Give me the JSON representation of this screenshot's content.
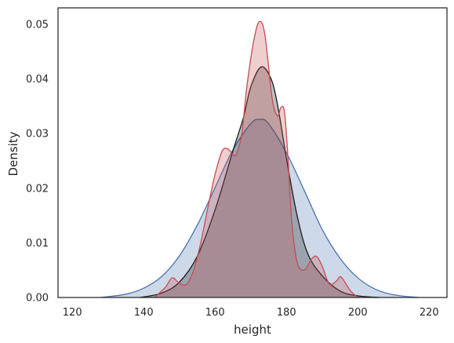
{
  "chart_data": {
    "type": "area",
    "title": "",
    "xlabel": "height",
    "ylabel": "Density",
    "xlim": [
      116,
      225
    ],
    "ylim": [
      0,
      0.053
    ],
    "xticks": [
      120,
      140,
      160,
      180,
      200,
      220
    ],
    "yticks": [
      0.0,
      0.01,
      0.02,
      0.03,
      0.04,
      0.05
    ],
    "ytick_labels": [
      "0.00",
      "0.01",
      "0.02",
      "0.03",
      "0.04",
      "0.05"
    ],
    "grid": false,
    "legend": "none",
    "series": [
      {
        "color": "#4c72b0",
        "fill_alpha": 0.28,
        "x": [
          128,
          135,
          140,
          145,
          150,
          155,
          160,
          165,
          170,
          172.5,
          175,
          180,
          185,
          190,
          195,
          200,
          205,
          210,
          217
        ],
        "y": [
          0.0,
          0.0006,
          0.0017,
          0.0038,
          0.0076,
          0.0132,
          0.0201,
          0.027,
          0.0318,
          0.0326,
          0.0318,
          0.0265,
          0.0196,
          0.0125,
          0.0072,
          0.0036,
          0.0015,
          0.0005,
          0.0
        ]
      },
      {
        "color": "#1a1a1a",
        "fill_alpha": 0.28,
        "x": [
          139,
          145,
          150,
          155,
          160,
          165,
          168,
          170,
          173,
          176,
          178,
          180,
          183,
          186,
          190,
          195,
          200,
          206
        ],
        "y": [
          0.0,
          0.0008,
          0.0028,
          0.0075,
          0.016,
          0.0268,
          0.033,
          0.0385,
          0.0422,
          0.0395,
          0.0335,
          0.0255,
          0.015,
          0.008,
          0.004,
          0.0012,
          0.0003,
          0.0
        ]
      },
      {
        "color": "#c44e52",
        "fill_alpha": 0.28,
        "x": [
          143,
          146,
          148,
          150,
          152,
          154,
          156,
          158,
          160,
          162,
          163.5,
          165,
          166,
          167.5,
          169,
          171,
          172.5,
          174,
          176,
          177.5,
          178.5,
          179.5,
          180.5,
          181.5,
          183,
          185,
          187,
          188.5,
          190,
          192,
          194,
          195,
          196,
          198,
          200
        ],
        "y": [
          0.0,
          0.0018,
          0.0036,
          0.0026,
          0.0024,
          0.005,
          0.01,
          0.0165,
          0.0225,
          0.0268,
          0.0272,
          0.0262,
          0.0262,
          0.03,
          0.039,
          0.0475,
          0.0505,
          0.048,
          0.0365,
          0.0332,
          0.0348,
          0.0338,
          0.025,
          0.014,
          0.0065,
          0.005,
          0.007,
          0.0075,
          0.0058,
          0.0025,
          0.003,
          0.0038,
          0.0032,
          0.0012,
          0.0
        ]
      }
    ]
  }
}
